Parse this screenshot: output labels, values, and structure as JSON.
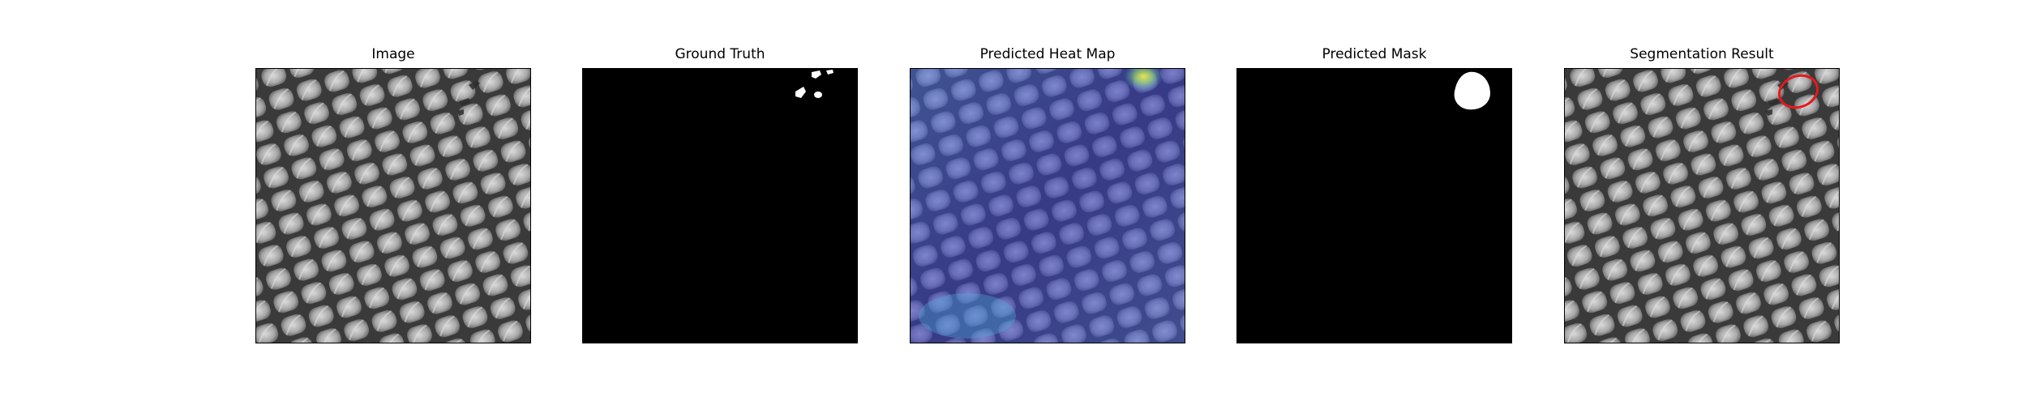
{
  "figure": {
    "panels": [
      {
        "key": "image",
        "title": "Image"
      },
      {
        "key": "ground_truth",
        "title": "Ground Truth"
      },
      {
        "key": "heatmap",
        "title": "Predicted Heat Map"
      },
      {
        "key": "mask",
        "title": "Predicted Mask"
      },
      {
        "key": "segmentation",
        "title": "Segmentation Result"
      }
    ],
    "colors": {
      "background": "#ffffff",
      "mask_foreground": "#ffffff",
      "mask_background": "#000000",
      "texture_dark": "#3a3a3a",
      "texture_light": "#b8b8b8",
      "heat_low": "#3a3fc8",
      "heat_high": "#f2ea4a",
      "contour": "#e41a1c"
    }
  }
}
